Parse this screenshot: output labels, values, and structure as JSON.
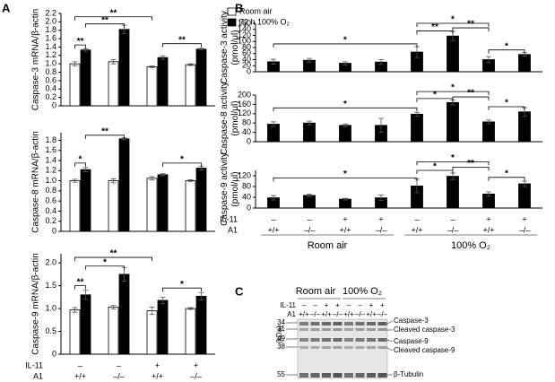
{
  "panels": [
    "A",
    "B",
    "C"
  ],
  "chart_data": [
    {
      "type": "bar",
      "ylabel": "Caspase-3 mRNA/β-actin",
      "ylim": [
        0,
        2.2
      ],
      "yticks": [
        0,
        0.2,
        0.4,
        0.6,
        0.8,
        {
          "value": 1,
          "label": "1.0"
        },
        1.2,
        1.4,
        1.6,
        1.8,
        {
          "value": 2,
          "label": "2.0"
        },
        2.2
      ],
      "legend": "top-right",
      "series": [
        {
          "name": "Room air",
          "color": "#ffffff",
          "values": [
            1.0,
            1.05,
            0.93,
            0.98
          ],
          "errors": [
            0.05,
            0.05,
            0.02,
            0.02
          ]
        },
        {
          "name": "72 h 100% O₂",
          "color": "#000000",
          "values": [
            1.33,
            1.82,
            1.15,
            1.35
          ],
          "errors": [
            0.03,
            0.1,
            0.04,
            0.02
          ]
        }
      ],
      "significance": [
        "**",
        "**",
        "**",
        "**"
      ]
    },
    {
      "type": "bar",
      "ylabel": "Caspase-8 mRNA/β-actin",
      "ylim": [
        0,
        1.95
      ],
      "yticks": [
        0,
        0.2,
        0.4,
        0.6,
        0.8,
        {
          "value": 1,
          "label": "1.0"
        },
        1.2,
        1.4,
        1.6,
        1.8
      ],
      "series": [
        {
          "color": "#ffffff",
          "values": [
            1.0,
            1.0,
            1.05,
            1.0
          ],
          "errors": [
            0.03,
            0.04,
            0.03,
            0.02
          ]
        },
        {
          "color": "#000000",
          "values": [
            1.22,
            1.83,
            1.12,
            1.25
          ],
          "errors": [
            0.04,
            0.02,
            0.02,
            0.04
          ]
        }
      ],
      "significance": [
        "*",
        "**",
        "*"
      ]
    },
    {
      "type": "bar",
      "ylabel": "Caspase-9 mRNA/β-actin",
      "ylim": [
        0,
        2.2
      ],
      "yticks": [
        0,
        0.5,
        {
          "value": 1,
          "label": "1.0"
        },
        1.5,
        {
          "value": 2,
          "label": "2.0"
        }
      ],
      "series": [
        {
          "color": "#ffffff",
          "values": [
            0.97,
            1.03,
            0.95,
            1.0
          ],
          "errors": [
            0.05,
            0.04,
            0.08,
            0.02
          ]
        },
        {
          "color": "#000000",
          "values": [
            1.3,
            1.75,
            1.18,
            1.27
          ],
          "errors": [
            0.1,
            0.15,
            0.07,
            0.08
          ]
        }
      ],
      "significance": [
        "**",
        "*",
        "**",
        "*"
      ],
      "category_rows": [
        {
          "name": "IL-11",
          "labels": [
            "–",
            "–",
            "+",
            "+"
          ]
        },
        {
          "name": "A1",
          "labels": [
            "+/+",
            "–/–",
            "+/+",
            "–/–"
          ]
        }
      ]
    },
    {
      "type": "bar",
      "ylabel": "Caspase-3 activity (pmol/μl)",
      "ylim": [
        0,
        160
      ],
      "yticks": [
        0,
        20,
        40,
        60,
        80,
        100,
        120,
        140,
        160
      ],
      "color": "#000000",
      "values": [
        33,
        38,
        28,
        32,
        65,
        118,
        40,
        57
      ],
      "errors": [
        8,
        6,
        5,
        8,
        18,
        15,
        10,
        6
      ],
      "significance": [
        "*",
        "**",
        "*",
        "**",
        "*"
      ]
    },
    {
      "type": "bar",
      "ylabel": "Caspase-8 activity (pmol/μl)",
      "ylim": [
        0,
        200
      ],
      "yticks": [
        0,
        40,
        80,
        120,
        160,
        200
      ],
      "color": "#000000",
      "values": [
        75,
        80,
        70,
        70,
        118,
        168,
        85,
        128
      ],
      "errors": [
        10,
        8,
        6,
        30,
        8,
        10,
        8,
        18
      ],
      "significance": [
        "*",
        "*",
        "*",
        "**",
        "*"
      ]
    },
    {
      "type": "bar",
      "ylabel": "Caspase-9 activity (pmol/μl)",
      "ylim": [
        0,
        140
      ],
      "yticks": [
        0,
        40,
        80,
        120
      ],
      "color": "#000000",
      "values": [
        38,
        47,
        33,
        38,
        82,
        118,
        52,
        90
      ],
      "errors": [
        8,
        5,
        3,
        10,
        25,
        12,
        8,
        10
      ],
      "significance": [
        "*",
        "*",
        "*",
        "**",
        "*"
      ],
      "category_rows": [
        {
          "name": "IL-11",
          "labels": [
            "–",
            "–",
            "+",
            "+",
            "–",
            "–",
            "+",
            "+"
          ]
        },
        {
          "name": "A1",
          "labels": [
            "+/+",
            "–/–",
            "+/+",
            "–/–",
            "+/+",
            "–/–",
            "+/+",
            "–/–"
          ]
        }
      ],
      "groups": [
        "Room air",
        "100% O₂"
      ]
    }
  ],
  "blot": {
    "groups": [
      "Room air",
      "100% O₂"
    ],
    "rows": [
      {
        "name": "IL-11",
        "labels": [
          "–",
          "–",
          "+",
          "+",
          "–",
          "–",
          "+",
          "+"
        ]
      },
      {
        "name": "A1",
        "labels": [
          "+/+",
          "–/–",
          "+/+",
          "–/–",
          "+/+",
          "–/–",
          "+/+",
          "–/–"
        ]
      }
    ],
    "kda": [
      "34",
      "31",
      "49",
      "38",
      "55"
    ],
    "kda_unit": "(kDa)",
    "bands": [
      "Caspase-3",
      "Cleaved caspase-3",
      "Caspase-9",
      "Cleaved caspase-9",
      "β-Tubulin"
    ]
  }
}
